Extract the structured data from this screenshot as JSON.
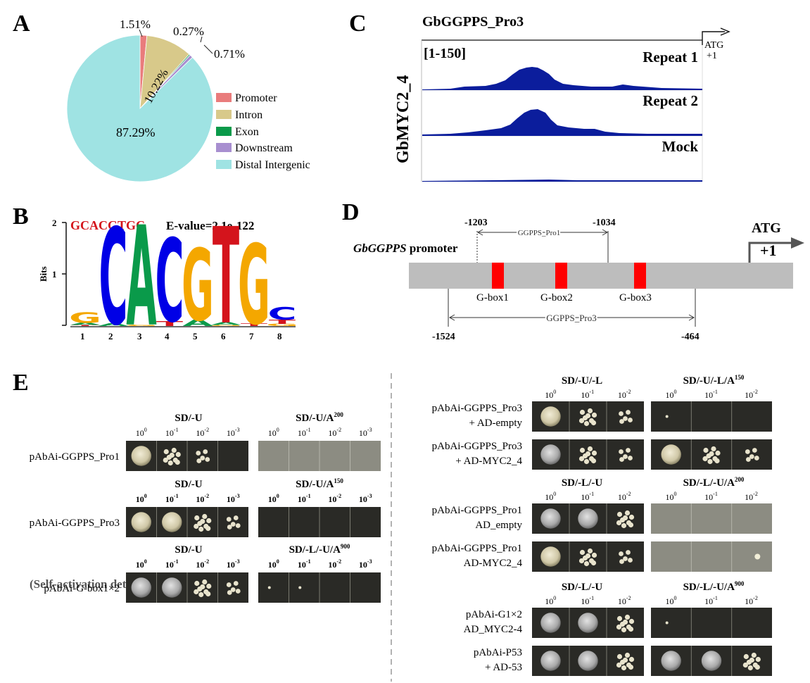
{
  "panel_labels": {
    "a": "A",
    "b": "B",
    "c": "C",
    "d": "D",
    "e": "E"
  },
  "colors": {
    "promoter": "#e97c7c",
    "intron": "#d8c98a",
    "exon": "#0a9a4a",
    "downstream": "#a88fd0",
    "distal": "#9fe3e3",
    "track": "#0b1d9c",
    "gbox": "#ff0000",
    "motif_A": "#0a9a4a",
    "motif_C": "#0000e6",
    "motif_G": "#f4a700",
    "motif_T": "#d4141c",
    "motif_title": "#d4141c"
  },
  "chart_data": {
    "type": "pie",
    "slices": [
      {
        "label": "Promoter",
        "value": 1.51,
        "pct": "1.51%"
      },
      {
        "label": "Intron",
        "value": 10.22,
        "pct": "10.22%"
      },
      {
        "label": "Exon",
        "value": 0.27,
        "pct": "0.27%"
      },
      {
        "label": "Downstream",
        "value": 0.71,
        "pct": "0.71%"
      },
      {
        "label": "Distal Intergenic",
        "value": 87.29,
        "pct": "87.29%"
      }
    ],
    "legend_placement": "bottom-right"
  },
  "motif": {
    "consensus": "GCACGTGC",
    "evalue": "E-value=2.1e-122",
    "y_axis_label": "Bits",
    "y_ticks": [
      "2",
      "1"
    ],
    "positions": [
      "1",
      "2",
      "3",
      "4",
      "5",
      "6",
      "7",
      "8"
    ]
  },
  "tracks": {
    "title": "GbGGPPS_Pro3",
    "side_label": "GbMYC2_4",
    "range": "[1-150]",
    "atg": "ATG",
    "plus_one": "+1",
    "rows": [
      "Repeat 1",
      "Repeat 2",
      "Mock"
    ]
  },
  "promoter_map": {
    "promoter_name": "GbGGPPS",
    "promoter_suffix": " promoter",
    "atg": "ATG",
    "plus_one": "+1",
    "gboxes": [
      "G-box1",
      "G-box2",
      "G-box3"
    ],
    "fragment1": "GGPPS_Pro1",
    "fragment3": "GGPPS_Pro3",
    "positions": [
      "-1203",
      "-1034",
      "-1524",
      "-464"
    ]
  },
  "y1h_left": {
    "block1": {
      "media": [
        "SD/-U",
        "SD/-U/A"
      ],
      "sup": [
        "",
        "200"
      ],
      "bait": "pAbAi-GGPPS_Pro1"
    },
    "block2": {
      "media": [
        "SD/-U",
        "SD/-U/A"
      ],
      "sup": [
        "",
        "150"
      ],
      "bait": "pAbAi-GGPPS_Pro3"
    },
    "block3": {
      "media": [
        "SD/-U",
        "SD/-L/-U/A"
      ],
      "sup": [
        "",
        "900"
      ],
      "bait": "pAbAi-G-box1×2"
    },
    "dil": [
      "0",
      "-1",
      "-2",
      "-3"
    ],
    "note": "(Self-activation detection)"
  },
  "y1h_right": {
    "block1": {
      "media": [
        "SD/-U/-L",
        "SD/-U/-L/A"
      ],
      "sup": [
        "",
        "150"
      ],
      "rows": [
        [
          "pAbAi-GGPPS_Pro3",
          "+ AD-empty"
        ],
        [
          "pAbAi-GGPPS_Pro3",
          "+ AD-MYC2_4"
        ]
      ]
    },
    "block2": {
      "media": [
        "SD/-L/-U",
        "SD/-L/-U/A"
      ],
      "sup": [
        "",
        "200"
      ],
      "rows": [
        [
          "pAbAi-GGPPS_Pro1",
          "AD_empty"
        ],
        [
          "pAbAi-GGPPS_Pro1",
          "AD-MYC2_4"
        ]
      ]
    },
    "block3": {
      "media": [
        "SD/-L/-U",
        "SD/-L/-U/A"
      ],
      "sup": [
        "",
        "900"
      ],
      "rows": [
        [
          "pAbAi-G1×2",
          "AD_MYC2-4"
        ],
        [
          "pAbAi-P53",
          "+ AD-53"
        ]
      ]
    },
    "dil": [
      "0",
      "-1",
      "-2"
    ]
  },
  "dilution_base": "10"
}
